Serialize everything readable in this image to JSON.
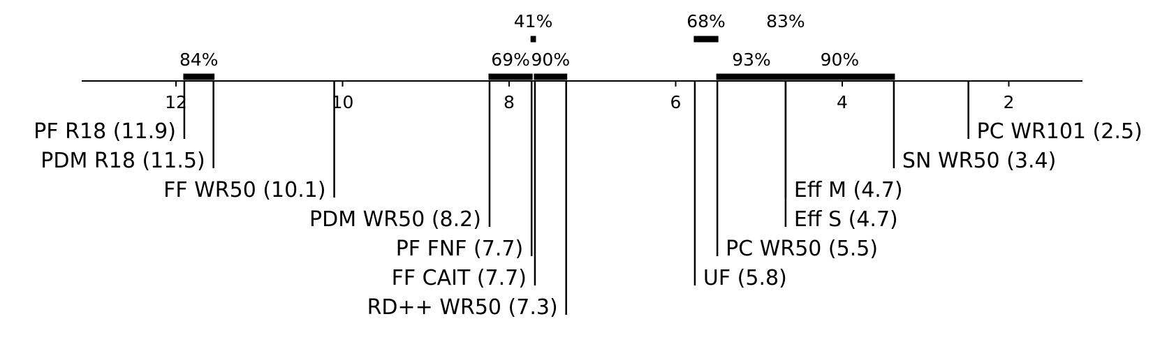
{
  "chart_data": {
    "type": "critical-difference",
    "axis": {
      "direction": "reversed",
      "range": [
        13.2,
        1.2
      ],
      "ticks": [
        12,
        10,
        8,
        6,
        4,
        2
      ],
      "tick_labels": [
        "12",
        "10",
        "8",
        "6",
        "4",
        "2"
      ]
    },
    "methods": [
      {
        "label": "PF R18 (11.9)",
        "rank": 11.9,
        "side": "left"
      },
      {
        "label": "PDM R18 (11.5)",
        "rank": 11.55,
        "side": "left"
      },
      {
        "label": "FF WR50 (10.1)",
        "rank": 10.1,
        "side": "left"
      },
      {
        "label": "PDM WR50 (8.2)",
        "rank": 8.235,
        "side": "left"
      },
      {
        "label": "PF FNF (7.7)",
        "rank": 7.73,
        "side": "left"
      },
      {
        "label": "FF CAIT (7.7)",
        "rank": 7.69,
        "side": "left"
      },
      {
        "label": "RD++ WR50 (7.3)",
        "rank": 7.315,
        "side": "left"
      },
      {
        "label": "UF (5.8)",
        "rank": 5.77,
        "side": "right"
      },
      {
        "label": "PC WR50 (5.5)",
        "rank": 5.5,
        "side": "right"
      },
      {
        "label": "Eff S (4.7)",
        "rank": 4.68,
        "side": "right"
      },
      {
        "label": "Eff M (4.7)",
        "rank": 4.68,
        "side": "right"
      },
      {
        "label": "SN WR50 (3.4)",
        "rank": 3.38,
        "side": "right"
      },
      {
        "label": "PC WR101 (2.5)",
        "rank": 2.485,
        "side": "right"
      }
    ],
    "groups": [
      {
        "label": "84%",
        "from": 11.9,
        "to": 11.55,
        "row": 1
      },
      {
        "label": "69%",
        "from": 8.235,
        "to": 7.73,
        "row": 1
      },
      {
        "label": "90%",
        "from": 7.69,
        "to": 7.315,
        "row": 1
      },
      {
        "label": "93%",
        "from": 5.5,
        "to": 4.68,
        "row": 1
      },
      {
        "label": "90%",
        "from": 4.68,
        "to": 3.38,
        "row": 1
      },
      {
        "label": "41%",
        "from": 7.73,
        "to": 7.69,
        "row": 2
      },
      {
        "label": "68%",
        "from": 5.77,
        "to": 5.5,
        "row": 2
      },
      {
        "label": "83%",
        "from": 4.68,
        "to": 4.68,
        "row": 2
      }
    ]
  }
}
